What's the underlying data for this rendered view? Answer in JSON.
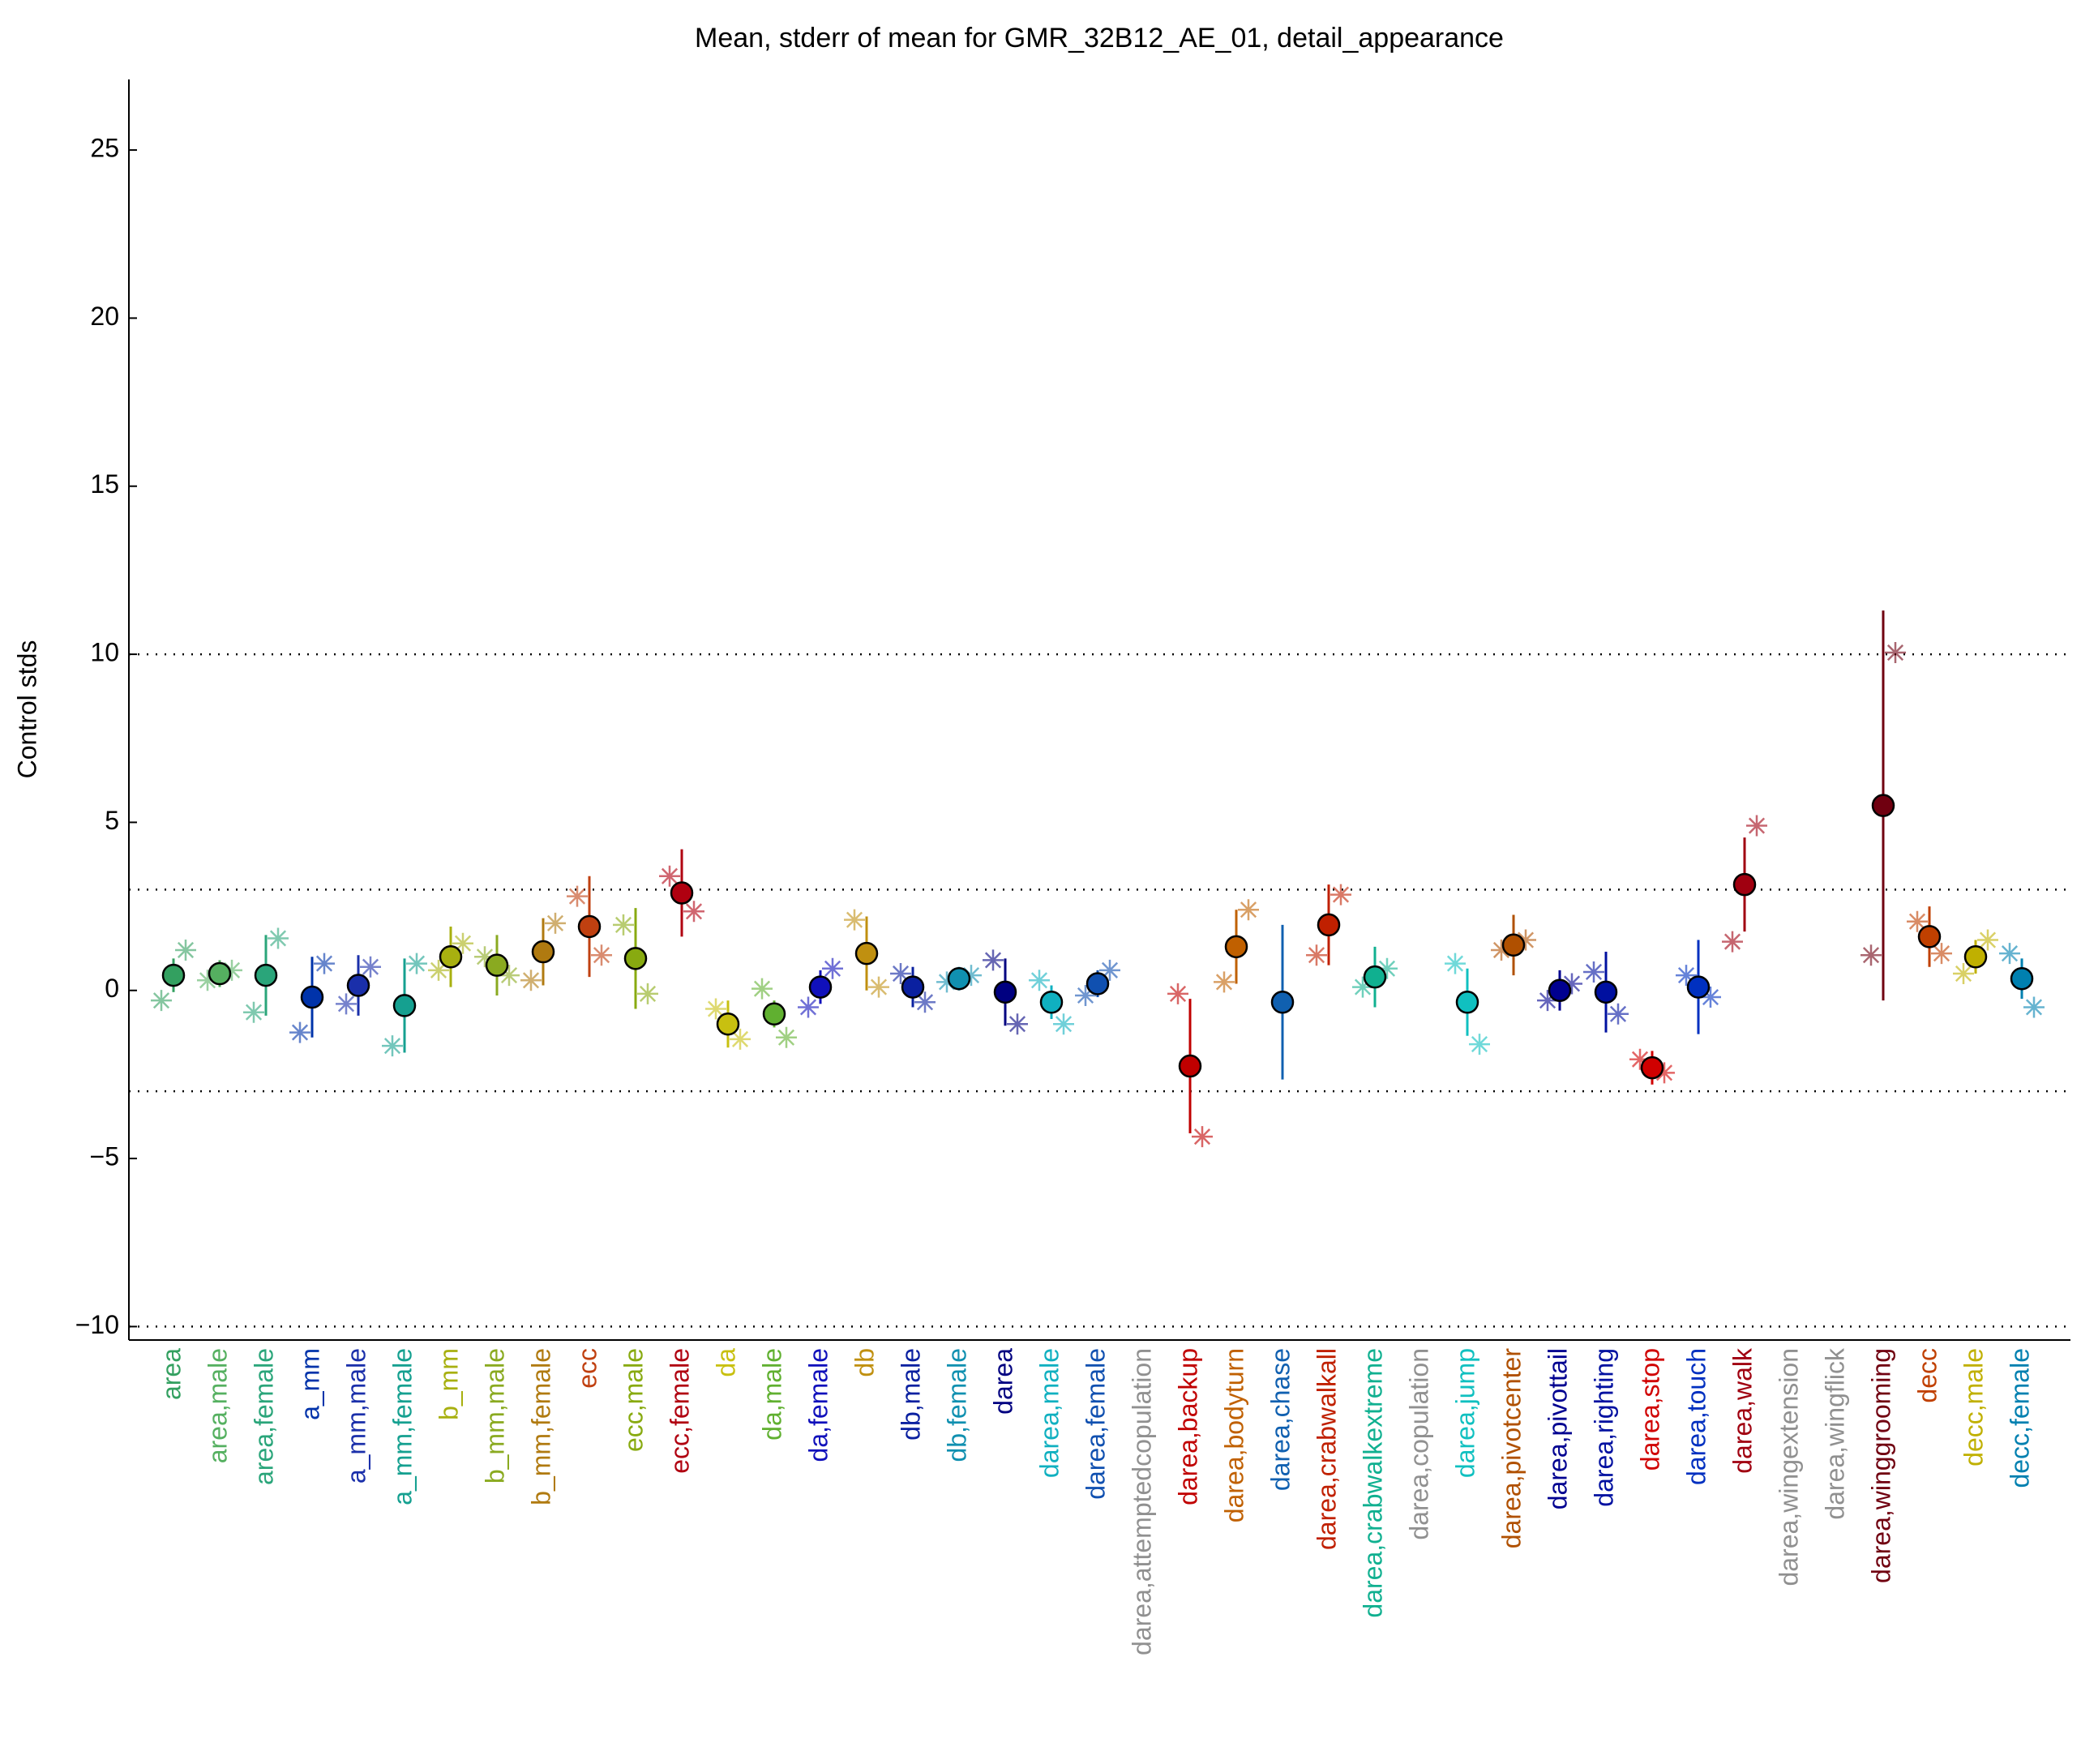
{
  "chart_data": {
    "type": "errorbar",
    "title": "Mean, stderr of mean for GMR_32B12_AE_01, detail_appearance",
    "y_label": "Control stds",
    "categories": [
      "area",
      "area,male",
      "area,female",
      "a_mm",
      "a_mm,male",
      "a_mm,female",
      "b_mm",
      "b_mm,male",
      "b_mm,female",
      "ecc",
      "ecc,male",
      "ecc,female",
      "da",
      "da,male",
      "da,female",
      "db",
      "db,male",
      "db,female",
      "darea",
      "darea,male",
      "darea,female",
      "darea,attemptedcopulation",
      "darea,backup",
      "darea,bodyturn",
      "darea,chase",
      "darea,crabwalkall",
      "darea,crabwalkextreme",
      "darea,copulation",
      "darea,jump",
      "darea,pivotcenter",
      "darea,pivottail",
      "darea,righting",
      "darea,stop",
      "darea,touch",
      "darea,walk",
      "darea,wingextension",
      "darea,wingflick",
      "darea,winggrooming",
      "decc",
      "decc,male",
      "decc,female"
    ],
    "colors": [
      "#33a060",
      "#55b060",
      "#2aa57a",
      "#0033aa",
      "#1a2faa",
      "#15a090",
      "#a8b010",
      "#8aaa20",
      "#b07a10",
      "#c04010",
      "#88aa10",
      "#b00010",
      "#c8c010",
      "#60b030",
      "#1010bb",
      "#c09010",
      "#0a20a0",
      "#1090b0",
      "#000080",
      "#10b0c0",
      "#1050b0",
      "#909090",
      "#c00000",
      "#c06000",
      "#1060b0",
      "#c02000",
      "#10b090",
      "#909090",
      "#10c0c0",
      "#b05000",
      "#000090",
      "#0010a0",
      "#d00000",
      "#0030c0",
      "#a00010",
      "#909090",
      "#909090",
      "#700010",
      "#c04000",
      "#c0b000",
      "#0080b0"
    ],
    "mean": [
      0.45,
      0.5,
      0.45,
      -0.2,
      0.15,
      -0.45,
      1.0,
      0.75,
      1.15,
      1.9,
      0.95,
      2.9,
      -1.0,
      -0.7,
      0.1,
      1.1,
      0.1,
      0.35,
      -0.05,
      -0.35,
      0.2,
      null,
      -2.25,
      1.3,
      -0.35,
      1.95,
      0.4,
      null,
      -0.35,
      1.35,
      0.0,
      -0.05,
      -2.3,
      0.1,
      3.15,
      null,
      null,
      5.5,
      1.6,
      1.0,
      0.35
    ],
    "stderr": [
      0.5,
      0.4,
      1.2,
      1.2,
      0.9,
      1.4,
      0.9,
      0.9,
      1.0,
      1.5,
      1.5,
      1.3,
      0.7,
      0.4,
      0.5,
      1.1,
      0.6,
      0.35,
      1.0,
      0.5,
      0.4,
      null,
      2.0,
      1.1,
      2.3,
      1.2,
      0.9,
      null,
      1.0,
      0.9,
      0.6,
      1.2,
      0.5,
      1.4,
      1.4,
      null,
      null,
      5.8,
      0.9,
      0.5,
      0.6
    ],
    "left": [
      -0.3,
      0.3,
      -0.65,
      -1.25,
      -0.4,
      -1.65,
      0.6,
      1.0,
      0.3,
      2.8,
      1.95,
      3.4,
      -0.55,
      0.05,
      -0.5,
      2.1,
      0.5,
      0.25,
      0.9,
      0.3,
      -0.15,
      null,
      -0.1,
      0.25,
      null,
      1.05,
      0.1,
      null,
      0.8,
      1.2,
      -0.3,
      0.55,
      -2.05,
      0.45,
      1.45,
      null,
      null,
      1.05,
      2.05,
      0.5,
      1.1
    ],
    "right": [
      1.2,
      0.6,
      1.55,
      0.8,
      0.7,
      0.8,
      1.4,
      0.45,
      2.0,
      1.05,
      -0.1,
      2.35,
      -1.45,
      -1.4,
      0.65,
      0.1,
      -0.35,
      0.45,
      -1.0,
      -1.0,
      0.6,
      null,
      -4.35,
      2.4,
      null,
      2.85,
      0.65,
      null,
      -1.6,
      1.5,
      0.2,
      -0.7,
      -2.45,
      -0.2,
      4.9,
      null,
      null,
      10.05,
      1.1,
      1.5,
      -0.5
    ],
    "ylim": [
      -10.4,
      27.1
    ],
    "yticks": [
      {
        "value": -10,
        "label": "−10"
      },
      {
        "value": -5,
        "label": "−5"
      },
      0,
      5,
      10,
      15,
      20,
      25
    ],
    "reference_lines": [
      -10,
      -3,
      3,
      10
    ]
  }
}
